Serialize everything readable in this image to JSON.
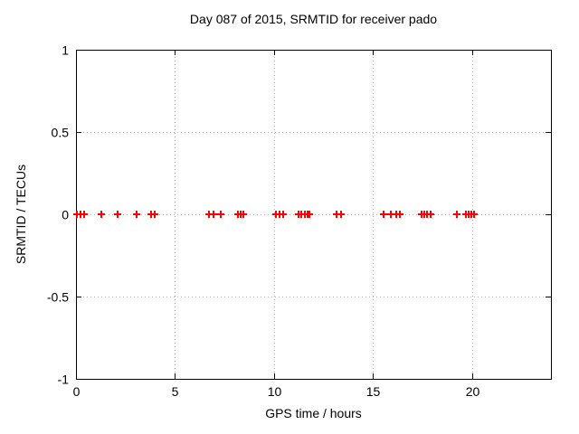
{
  "colors": {
    "background": "#ffffff",
    "axis": "#000000",
    "grid": "#b0b0b0",
    "text": "#000000",
    "marker": "#ff0000"
  },
  "chart_data": {
    "type": "scatter",
    "title": "Day 087 of 2015, SRMTID for receiver pado",
    "xlabel": "GPS time / hours",
    "ylabel": "SRMTID / TECUs",
    "xlim": [
      0,
      24
    ],
    "ylim": [
      -1,
      1
    ],
    "grid": "dotted",
    "legend": "none",
    "marker_style": "plus",
    "xticks": {
      "values": [
        0,
        5,
        10,
        15,
        20
      ],
      "labels": [
        "0",
        "5",
        "10",
        "15",
        "20"
      ]
    },
    "yticks": {
      "values": [
        1,
        0.5,
        0,
        -0.5,
        -1
      ],
      "labels": [
        "1",
        "0.5",
        "0",
        "-0.5",
        "-1"
      ]
    },
    "series": [
      {
        "name": "SRMTID",
        "marker": "plus",
        "color": "#ff0000",
        "x": [
          0.05,
          0.22,
          0.4,
          1.28,
          2.1,
          3.06,
          3.8,
          3.98,
          6.71,
          6.93,
          7.33,
          8.18,
          8.31,
          8.45,
          10.1,
          10.28,
          10.48,
          11.25,
          11.4,
          11.56,
          11.7,
          11.8,
          13.16,
          13.39,
          15.56,
          15.92,
          16.16,
          16.38,
          17.44,
          17.6,
          17.74,
          17.92,
          19.24,
          19.72,
          19.86,
          19.99,
          20.12
        ],
        "y": [
          0,
          0,
          0,
          0,
          0,
          0,
          0,
          0,
          0,
          0,
          0,
          0,
          0,
          0,
          0,
          0,
          0,
          0,
          0,
          0,
          0,
          0,
          0,
          0,
          0,
          0,
          0,
          0,
          0,
          0,
          0,
          0,
          0,
          0,
          0,
          0,
          0
        ]
      }
    ]
  }
}
